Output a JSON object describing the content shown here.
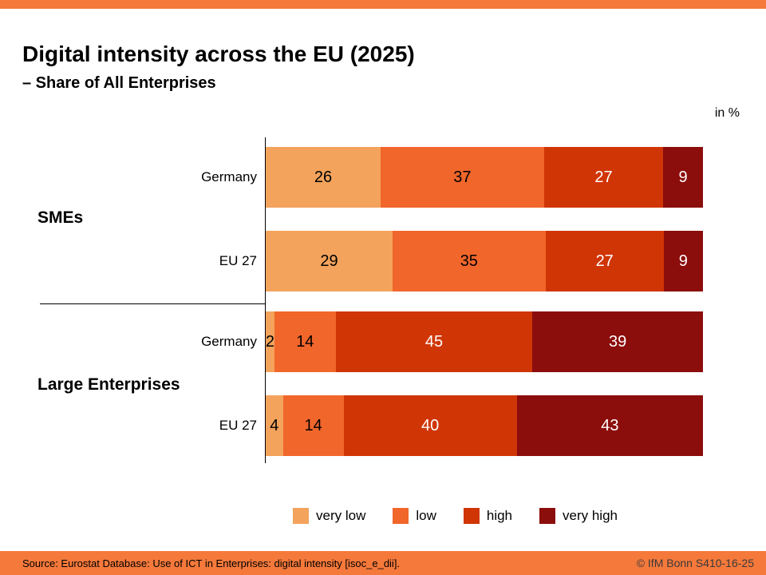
{
  "header": {
    "title": "Digital intensity across the EU (2025)",
    "subtitle": "– Share of All Enterprises",
    "unit_label": "in %"
  },
  "chart_data": {
    "type": "bar",
    "orientation": "horizontal",
    "stacked": true,
    "unit": "%",
    "series": [
      "very low",
      "low",
      "high",
      "very high"
    ],
    "colors": [
      "#F3A35C",
      "#F1662B",
      "#D03506",
      "#8B0D0C"
    ],
    "label_text_colors": [
      "#000000",
      "#000000",
      "#FFFFFF",
      "#FFFFFF"
    ],
    "groups": [
      {
        "label": "SMEs",
        "rows": [
          {
            "label": "Germany",
            "values": [
              26,
              37,
              27,
              9
            ]
          },
          {
            "label": "EU 27",
            "values": [
              29,
              35,
              27,
              9
            ]
          }
        ]
      },
      {
        "label": "Large Enterprises",
        "rows": [
          {
            "label": "Germany",
            "values": [
              2,
              14,
              45,
              39
            ]
          },
          {
            "label": "EU 27",
            "values": [
              4,
              14,
              40,
              43
            ]
          }
        ]
      }
    ]
  },
  "legend": {
    "items": [
      {
        "label": "very low",
        "color": "#F3A35C"
      },
      {
        "label": "low",
        "color": "#F1662B"
      },
      {
        "label": "high",
        "color": "#D03506"
      },
      {
        "label": "very high",
        "color": "#8B0D0C"
      }
    ]
  },
  "footer": {
    "source": "Source: Eurostat Database: Use of ICT in Enterprises: digital intensity [isoc_e_dii].",
    "copyright": "© IfM Bonn  S410-16-25"
  },
  "theme": {
    "accent": "#F5793B"
  }
}
